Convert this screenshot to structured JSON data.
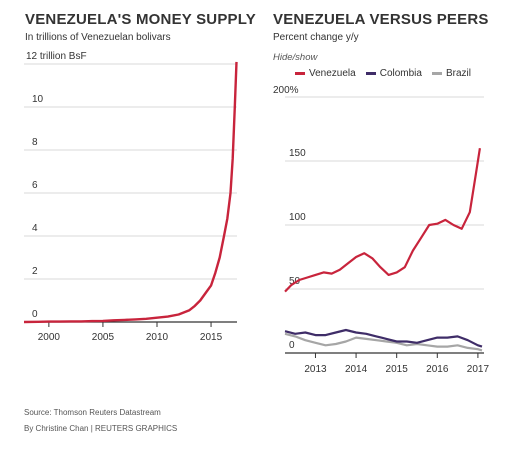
{
  "colors": {
    "venezuela": "#c8243c",
    "colombia": "#3f2d68",
    "brazil": "#a6a6a6",
    "axis": "#333333",
    "grid": "#d8d8d8",
    "text": "#333333"
  },
  "source": "Source: Thomson Reuters Datastream",
  "byline": "By Christine Chan | REUTERS GRAPHICS",
  "chart_data": [
    {
      "type": "line",
      "title": "VENEZUELA'S MONEY SUPPLY",
      "subtitle": "In trillions of Venezuelan bolivars",
      "y_top_label": "12 trillion BsF",
      "xlabel": "",
      "ylabel": "",
      "xlim": [
        1997.7,
        2017.4
      ],
      "ylim": [
        0,
        12
      ],
      "x_ticks": [
        "2000",
        "2005",
        "2010",
        "2015"
      ],
      "y_ticks": [
        "0",
        "2",
        "4",
        "6",
        "8",
        "10"
      ],
      "grid": true,
      "series": [
        {
          "color": "#c8243c",
          "x": [
            1997.7,
            1999,
            2000,
            2001,
            2002,
            2003,
            2004,
            2005,
            2006,
            2007,
            2008,
            2009,
            2010,
            2011,
            2012,
            2013,
            2013.5,
            2014,
            2014.5,
            2015,
            2015.4,
            2015.8,
            2016.2,
            2016.5,
            2016.8,
            2017,
            2017.2,
            2017.35
          ],
          "y": [
            0,
            0.01,
            0.02,
            0.02,
            0.03,
            0.03,
            0.04,
            0.05,
            0.08,
            0.1,
            0.12,
            0.15,
            0.2,
            0.25,
            0.35,
            0.55,
            0.75,
            1.0,
            1.35,
            1.7,
            2.3,
            3.0,
            4.0,
            4.8,
            6.0,
            7.6,
            10.0,
            12.1
          ]
        }
      ]
    },
    {
      "type": "line",
      "title": "VENEZUELA VERSUS PEERS",
      "subtitle": "Percent change y/y",
      "hide_show": "Hide/show",
      "y_top_label": "200%",
      "xlabel": "",
      "ylabel": "",
      "xlim": [
        2012.25,
        2017.15
      ],
      "ylim": [
        0,
        200
      ],
      "x_ticks": [
        "2013",
        "2014",
        "2015",
        "2016",
        "2017"
      ],
      "y_ticks": [
        "0",
        "50",
        "100",
        "150"
      ],
      "grid": true,
      "legend": [
        "Venezuela",
        "Colombia",
        "Brazil"
      ],
      "legend_position": "top-left",
      "series": [
        {
          "name": "Venezuela",
          "color": "#c8243c",
          "x": [
            2012.25,
            2012.4,
            2012.6,
            2012.8,
            2013.0,
            2013.2,
            2013.4,
            2013.6,
            2013.8,
            2014.0,
            2014.2,
            2014.4,
            2014.6,
            2014.8,
            2015.0,
            2015.2,
            2015.4,
            2015.6,
            2015.8,
            2016.0,
            2016.2,
            2016.4,
            2016.6,
            2016.8,
            2016.95,
            2017.05
          ],
          "y": [
            48,
            53,
            57,
            59,
            61,
            63,
            62,
            65,
            70,
            75,
            78,
            74,
            67,
            61,
            63,
            67,
            80,
            90,
            100,
            101,
            104,
            100,
            97,
            110,
            140,
            160
          ]
        },
        {
          "name": "Colombia",
          "color": "#3f2d68",
          "x": [
            2012.25,
            2012.5,
            2012.75,
            2013.0,
            2013.25,
            2013.5,
            2013.75,
            2014.0,
            2014.25,
            2014.5,
            2014.75,
            2015.0,
            2015.25,
            2015.5,
            2015.75,
            2016.0,
            2016.25,
            2016.5,
            2016.75,
            2017.0,
            2017.1
          ],
          "y": [
            17,
            15,
            16,
            14,
            14,
            16,
            18,
            16,
            15,
            13,
            11,
            9,
            9,
            8,
            10,
            12,
            12,
            13,
            10,
            6,
            5
          ]
        },
        {
          "name": "Brazil",
          "color": "#a6a6a6",
          "x": [
            2012.25,
            2012.5,
            2012.75,
            2013.0,
            2013.25,
            2013.5,
            2013.75,
            2014.0,
            2014.25,
            2014.5,
            2014.75,
            2015.0,
            2015.25,
            2015.5,
            2015.75,
            2016.0,
            2016.25,
            2016.5,
            2016.75,
            2017.0,
            2017.1
          ],
          "y": [
            15,
            13,
            10,
            8,
            6,
            7,
            9,
            12,
            11,
            10,
            9,
            8,
            6,
            7,
            6,
            5,
            5,
            6,
            4,
            3,
            2
          ]
        }
      ]
    }
  ]
}
